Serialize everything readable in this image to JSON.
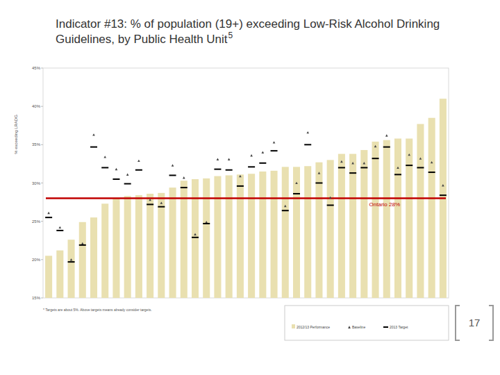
{
  "chart_data": {
    "type": "bar",
    "title": "Indicator #13: % of population (19+) exceeding Low-Risk Alcohol Drinking Guidelines, by Public Health Unit",
    "title_superscript": "5",
    "y_label": "% exceeding LRADG",
    "footnote": "* Targets are about 5%. Above targets means already consider targets.",
    "page_number": "17",
    "categories": [
      null,
      null,
      null,
      null,
      null,
      null,
      null,
      null,
      null,
      null,
      null,
      null,
      null,
      null,
      null,
      null,
      null,
      null,
      null,
      null,
      null,
      null,
      null,
      null,
      null,
      null,
      null,
      null,
      null,
      null,
      null,
      null,
      null,
      null,
      null,
      null
    ],
    "series": [
      {
        "name": "2012/13 Performance",
        "type": "bar",
        "color": "#e9e0b0",
        "values": [
          20.5,
          21.2,
          22.6,
          24.9,
          25.5,
          27.3,
          28.0,
          28.3,
          28.4,
          28.6,
          28.7,
          29.4,
          30.3,
          30.5,
          30.6,
          30.9,
          31.0,
          31.1,
          31.2,
          31.5,
          31.6,
          32.1,
          32.1,
          32.2,
          32.7,
          33.0,
          33.8,
          33.8,
          34.3,
          35.4,
          35.6,
          35.8,
          35.8,
          37.7,
          38.5,
          41.0
        ]
      },
      {
        "name": "Baseline",
        "type": "scatter",
        "marker": "triangle",
        "color": "#444444",
        "values": [
          26.1,
          24.2,
          20.0,
          22.1,
          36.3,
          33.4,
          31.8,
          31.1,
          32.9,
          27.8,
          27.4,
          32.3,
          30.7,
          23.3,
          24.9,
          33.1,
          33.1,
          30.9,
          33.6,
          34.0,
          35.3,
          27.0,
          30.0,
          36.6,
          31.3,
          28.1,
          32.8,
          32.6,
          32.6,
          34.8,
          36.2,
          32.0,
          33.7,
          33.2,
          32.7,
          29.7
        ]
      },
      {
        "name": "2013 Target",
        "type": "scatter",
        "marker": "dash",
        "color": "#000000",
        "values": [
          25.5,
          23.8,
          19.7,
          21.9,
          34.7,
          32.0,
          30.5,
          29.9,
          31.7,
          27.2,
          26.9,
          31.0,
          29.4,
          22.9,
          24.7,
          31.8,
          31.7,
          29.6,
          32.1,
          32.6,
          34.2,
          26.4,
          28.6,
          35.0,
          30.0,
          27.1,
          32.0,
          31.3,
          32.0,
          33.2,
          34.7,
          31.1,
          32.3,
          32.0,
          31.4,
          28.4
        ]
      }
    ],
    "reference_line": {
      "value": 28,
      "label": "Ontario 28%",
      "color": "#c00000"
    },
    "ylim": [
      15,
      45
    ],
    "yticks": [
      {
        "value": 15,
        "label": "15%"
      },
      {
        "value": 20,
        "label": "20%"
      },
      {
        "value": 25,
        "label": "25%"
      },
      {
        "value": 30,
        "label": "30%"
      },
      {
        "value": 35,
        "label": "35%"
      },
      {
        "value": 40,
        "label": "40%"
      },
      {
        "value": 45,
        "label": "45%"
      }
    ],
    "grid": false,
    "legend": "bottom-right",
    "tick_labels": "y"
  }
}
